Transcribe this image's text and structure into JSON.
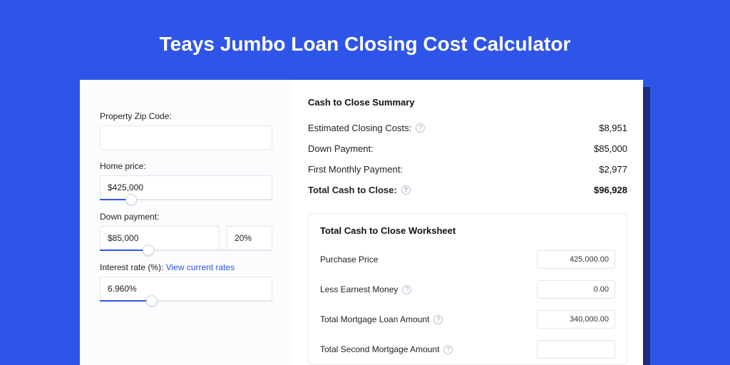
{
  "colors": {
    "page_bg": "#2f55e8",
    "card_bg": "#ffffff",
    "left_panel_bg": "#fbfcfe",
    "shadow": "#1f2c7a",
    "input_border": "#e2e5ec",
    "slider_fill": "#2f55e8",
    "link": "#2f55e8",
    "text": "#222222",
    "muted_icon": "#9aa1b5"
  },
  "title": "Teays Jumbo Loan Closing Cost Calculator",
  "form": {
    "zip": {
      "label": "Property Zip Code:",
      "value": ""
    },
    "home_price": {
      "label": "Home price:",
      "value": "$425,000",
      "slider_pct": 18
    },
    "down_payment": {
      "label": "Down payment:",
      "value": "$85,000",
      "pct_value": "20%",
      "slider_pct": 28
    },
    "interest_rate": {
      "label": "Interest rate (%): ",
      "link_text": "View current rates",
      "value": "6.960%",
      "slider_pct": 30
    }
  },
  "summary": {
    "title": "Cash to Close Summary",
    "rows": [
      {
        "label": "Estimated Closing Costs:",
        "help": true,
        "value": "$8,951",
        "bold": false
      },
      {
        "label": "Down Payment:",
        "help": false,
        "value": "$85,000",
        "bold": false
      },
      {
        "label": "First Monthly Payment:",
        "help": false,
        "value": "$2,977",
        "bold": false
      },
      {
        "label": "Total Cash to Close:",
        "help": true,
        "value": "$96,928",
        "bold": true
      }
    ]
  },
  "worksheet": {
    "title": "Total Cash to Close Worksheet",
    "rows": [
      {
        "label": "Purchase Price",
        "help": false,
        "value": "425,000.00"
      },
      {
        "label": "Less Earnest Money",
        "help": true,
        "value": "0.00"
      },
      {
        "label": "Total Mortgage Loan Amount",
        "help": true,
        "value": "340,000.00"
      },
      {
        "label": "Total Second Mortgage Amount",
        "help": true,
        "value": ""
      }
    ]
  }
}
